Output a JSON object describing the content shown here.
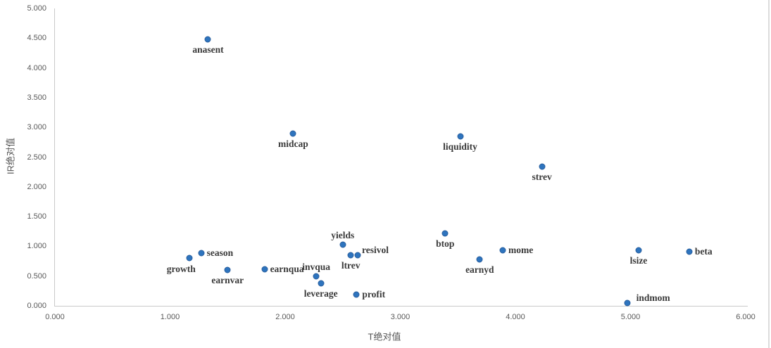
{
  "chart_data": {
    "type": "scatter",
    "title": "",
    "xlabel": "T绝对值",
    "ylabel": "IR绝对值",
    "xlim": [
      0,
      6
    ],
    "ylim": [
      0,
      5
    ],
    "x_tick_labels": [
      "0.000",
      "1.000",
      "2.000",
      "3.000",
      "4.000",
      "5.000",
      "6.000"
    ],
    "y_tick_labels": [
      "0.000",
      "0.500",
      "1.000",
      "1.500",
      "2.000",
      "2.500",
      "3.000",
      "3.500",
      "4.000",
      "4.500",
      "5.000"
    ],
    "grid": false,
    "legend": false,
    "colors": {
      "marker": "#2e74be",
      "marker_border": "#2a5f9e",
      "point_label": "#3a3a3a",
      "tick_label": "#595959",
      "axis_line": "#c9c9c9"
    },
    "points": [
      {
        "label": "growth",
        "x": 1.17,
        "y": 0.8,
        "label_pos": "below-left"
      },
      {
        "label": "season",
        "x": 1.27,
        "y": 0.89,
        "label_pos": "right"
      },
      {
        "label": "anasent",
        "x": 1.33,
        "y": 4.48,
        "label_pos": "below"
      },
      {
        "label": "earnvar",
        "x": 1.5,
        "y": 0.6,
        "label_pos": "below"
      },
      {
        "label": "earnqua",
        "x": 1.82,
        "y": 0.61,
        "label_pos": "right"
      },
      {
        "label": "midcap",
        "x": 2.07,
        "y": 2.9,
        "label_pos": "below"
      },
      {
        "label": "invqua",
        "x": 2.27,
        "y": 0.5,
        "label_pos": "above"
      },
      {
        "label": "leverage",
        "x": 2.31,
        "y": 0.38,
        "label_pos": "below"
      },
      {
        "label": "yields",
        "x": 2.5,
        "y": 1.03,
        "label_pos": "above"
      },
      {
        "label": "ltrev",
        "x": 2.57,
        "y": 0.85,
        "label_pos": "below"
      },
      {
        "label": "resivol",
        "x": 2.63,
        "y": 0.85,
        "label_pos": "above-right"
      },
      {
        "label": "profit",
        "x": 2.62,
        "y": 0.19,
        "label_pos": "right"
      },
      {
        "label": "btop",
        "x": 3.39,
        "y": 1.22,
        "label_pos": "below"
      },
      {
        "label": "liquidity",
        "x": 3.52,
        "y": 2.85,
        "label_pos": "below"
      },
      {
        "label": "earnyd",
        "x": 3.69,
        "y": 0.78,
        "label_pos": "below"
      },
      {
        "label": "mome",
        "x": 3.89,
        "y": 0.93,
        "label_pos": "right"
      },
      {
        "label": "strev",
        "x": 4.23,
        "y": 2.34,
        "label_pos": "below"
      },
      {
        "label": "indmom",
        "x": 4.97,
        "y": 0.05,
        "label_pos": "right-above"
      },
      {
        "label": "lsize",
        "x": 5.07,
        "y": 0.93,
        "label_pos": "below"
      },
      {
        "label": "beta",
        "x": 5.51,
        "y": 0.91,
        "label_pos": "right"
      }
    ]
  }
}
